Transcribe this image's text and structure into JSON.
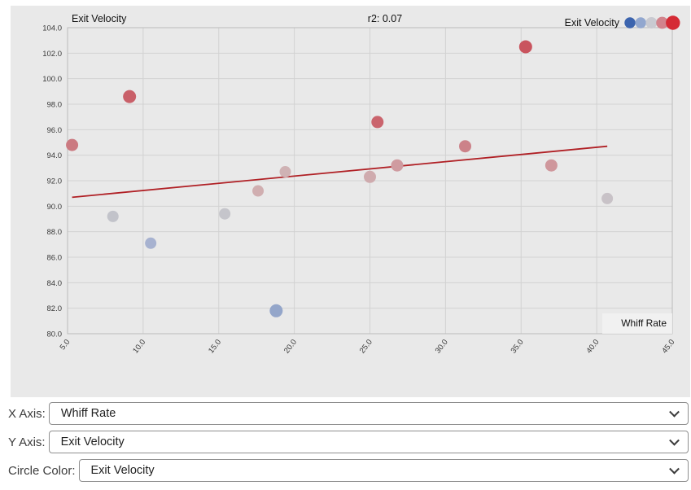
{
  "chart_data": {
    "type": "scatter",
    "title": "r2: 0.07",
    "y_axis_title": "Exit Velocity",
    "x_axis_label": "Whiff Rate",
    "xlabel": "Whiff Rate",
    "ylabel": "Exit Velocity",
    "xlim": [
      5,
      45
    ],
    "ylim": [
      80,
      104
    ],
    "grid": true,
    "x_ticks": [
      5,
      10,
      15,
      20,
      25,
      30,
      35,
      40,
      45
    ],
    "x_tick_labels": [
      "5.0",
      "10.0",
      "15.0",
      "20.0",
      "25.0",
      "30.0",
      "35.0",
      "40.0",
      "45.0"
    ],
    "y_ticks": [
      80,
      82,
      84,
      86,
      88,
      90,
      92,
      94,
      96,
      98,
      100,
      102,
      104
    ],
    "y_tick_labels": [
      "80.0",
      "82.0",
      "84.0",
      "86.0",
      "88.0",
      "90.0",
      "92.0",
      "94.0",
      "96.0",
      "98.0",
      "100.0",
      "102.0",
      "104.0"
    ],
    "colors": {
      "panel_background": "#e9e9e9",
      "gridline": "#d2d2d2",
      "plot_border": "#bcbcbc",
      "tick_text": "#3a3a3a",
      "label_text": "#111111",
      "trend_line": "#b02025"
    },
    "points": [
      {
        "x": 5.3,
        "y": 94.8,
        "r": 7.5,
        "color": "#cb7a81"
      },
      {
        "x": 9.1,
        "y": 98.6,
        "r": 8,
        "color": "#c96069"
      },
      {
        "x": 8.0,
        "y": 89.2,
        "r": 7,
        "color": "#c2c3ca"
      },
      {
        "x": 10.5,
        "y": 87.1,
        "r": 7,
        "color": "#a7b2d0"
      },
      {
        "x": 15.4,
        "y": 89.4,
        "r": 7,
        "color": "#c5c5cb"
      },
      {
        "x": 17.6,
        "y": 91.2,
        "r": 7,
        "color": "#d0aeb0"
      },
      {
        "x": 19.4,
        "y": 92.7,
        "r": 7,
        "color": "#cfb2b4"
      },
      {
        "x": 18.8,
        "y": 81.8,
        "r": 8,
        "color": "#94a6ca"
      },
      {
        "x": 25.0,
        "y": 92.3,
        "r": 7.5,
        "color": "#cfabae"
      },
      {
        "x": 25.5,
        "y": 96.6,
        "r": 7.5,
        "color": "#ca646d"
      },
      {
        "x": 26.8,
        "y": 93.2,
        "r": 7.5,
        "color": "#cf9ba0"
      },
      {
        "x": 31.3,
        "y": 94.7,
        "r": 7.5,
        "color": "#cc8289"
      },
      {
        "x": 35.3,
        "y": 102.5,
        "r": 8,
        "color": "#c9545e"
      },
      {
        "x": 37.0,
        "y": 93.2,
        "r": 7.5,
        "color": "#cf979c"
      },
      {
        "x": 40.7,
        "y": 90.6,
        "r": 7,
        "color": "#c8c2c7"
      }
    ],
    "trend_line": {
      "x1": 5.3,
      "y1": 90.7,
      "x2": 40.7,
      "y2": 94.7,
      "r2": "0.07"
    },
    "legend": {
      "label": "Exit Velocity",
      "position": "top-right",
      "swatches": [
        {
          "color": "#3c64ae",
          "r": 6.7
        },
        {
          "color": "#92a7cf",
          "r": 6.7
        },
        {
          "color": "#c9cad1",
          "r": 7.0
        },
        {
          "color": "#d2838c",
          "r": 7.4
        },
        {
          "color": "#d52b35",
          "r": 8.7
        }
      ]
    }
  },
  "controls": [
    {
      "label": "X Axis:",
      "value": "Whiff Rate"
    },
    {
      "label": "Y Axis:",
      "value": "Exit Velocity"
    },
    {
      "label": "Circle Color:",
      "value": "Exit Velocity"
    }
  ]
}
